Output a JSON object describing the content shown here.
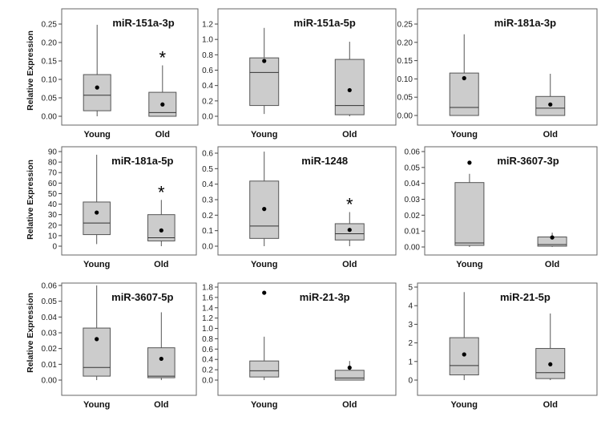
{
  "ylabel": "Relative Expression",
  "chart_data": [
    {
      "type": "box",
      "title": "miR-151a-3p",
      "categories": [
        "Young",
        "Old"
      ],
      "yticks": [
        "0.00",
        "0.05",
        "0.10",
        "0.15",
        "0.20",
        "0.25"
      ],
      "ylim": [
        0,
        0.25
      ],
      "ylabel": "Relative Expression",
      "boxes": [
        {
          "label": "Young",
          "min": 0.0,
          "q1": 0.015,
          "median": 0.057,
          "q3": 0.113,
          "max": 0.248,
          "mean": 0.078,
          "sig": ""
        },
        {
          "label": "Old",
          "min": 0.0,
          "q1": 0.0,
          "median": 0.01,
          "q3": 0.065,
          "max": 0.138,
          "mean": 0.032,
          "sig": "*"
        }
      ]
    },
    {
      "type": "box",
      "title": "miR-151a-5p",
      "categories": [
        "Young",
        "Old"
      ],
      "yticks": [
        "0.0",
        "0.2",
        "0.4",
        "0.6",
        "0.8",
        "1.0",
        "1.2"
      ],
      "ylim": [
        0,
        1.2
      ],
      "ylabel": "",
      "boxes": [
        {
          "label": "Young",
          "min": 0.03,
          "q1": 0.14,
          "median": 0.57,
          "q3": 0.76,
          "max": 1.15,
          "mean": 0.72,
          "sig": ""
        },
        {
          "label": "Old",
          "min": 0.0,
          "q1": 0.02,
          "median": 0.14,
          "q3": 0.74,
          "max": 0.97,
          "mean": 0.34,
          "sig": ""
        }
      ]
    },
    {
      "type": "box",
      "title": "miR-181a-3p",
      "categories": [
        "Young",
        "Old"
      ],
      "yticks": [
        "0.00",
        "0.05",
        "0.10",
        "0.15",
        "0.20",
        "0.25"
      ],
      "ylim": [
        0,
        0.25
      ],
      "ylabel": "",
      "boxes": [
        {
          "label": "Young",
          "min": 0.0,
          "q1": 0.0,
          "median": 0.022,
          "q3": 0.116,
          "max": 0.222,
          "mean": 0.102,
          "sig": ""
        },
        {
          "label": "Old",
          "min": 0.0,
          "q1": 0.0,
          "median": 0.02,
          "q3": 0.052,
          "max": 0.114,
          "mean": 0.03,
          "sig": ""
        }
      ]
    },
    {
      "type": "box",
      "title": "miR-181a-5p",
      "categories": [
        "Young",
        "Old"
      ],
      "yticks": [
        "0",
        "10",
        "20",
        "30",
        "40",
        "50",
        "60",
        "70",
        "80",
        "90"
      ],
      "ylim": [
        0,
        90
      ],
      "ylabel": "Relative Expression",
      "boxes": [
        {
          "label": "Young",
          "min": 2,
          "q1": 11,
          "median": 22,
          "q3": 42,
          "max": 87,
          "mean": 32,
          "sig": ""
        },
        {
          "label": "Old",
          "min": 0,
          "q1": 5,
          "median": 8,
          "q3": 30,
          "max": 44,
          "mean": 15,
          "sig": "*"
        }
      ]
    },
    {
      "type": "box",
      "title": "miR-1248",
      "categories": [
        "Young",
        "Old"
      ],
      "yticks": [
        "0.0",
        "0.1",
        "0.2",
        "0.3",
        "0.4",
        "0.5",
        "0.6"
      ],
      "ylim": [
        0,
        0.6
      ],
      "ylabel": "",
      "boxes": [
        {
          "label": "Young",
          "min": 0.0,
          "q1": 0.05,
          "median": 0.13,
          "q3": 0.42,
          "max": 0.61,
          "mean": 0.24,
          "sig": ""
        },
        {
          "label": "Old",
          "min": 0.0,
          "q1": 0.04,
          "median": 0.08,
          "q3": 0.145,
          "max": 0.22,
          "mean": 0.105,
          "sig": "*"
        }
      ]
    },
    {
      "type": "box",
      "title": "miR-3607-3p",
      "categories": [
        "Young",
        "Old"
      ],
      "yticks": [
        "0.00",
        "0.01",
        "0.02",
        "0.03",
        "0.04",
        "0.05",
        "0.06"
      ],
      "ylim": [
        0,
        0.06
      ],
      "ylabel": "",
      "boxes": [
        {
          "label": "Young",
          "min": 0.0,
          "q1": 0.001,
          "median": 0.0025,
          "q3": 0.0405,
          "max": 0.046,
          "mean": 0.053,
          "sig": ""
        },
        {
          "label": "Old",
          "min": 0.0,
          "q1": 0.0005,
          "median": 0.0015,
          "q3": 0.0063,
          "max": 0.009,
          "mean": 0.006,
          "sig": ""
        }
      ]
    },
    {
      "type": "box",
      "title": "miR-3607-5p",
      "categories": [
        "Young",
        "Old"
      ],
      "yticks": [
        "0.00",
        "0.01",
        "0.02",
        "0.03",
        "0.04",
        "0.05",
        "0.06"
      ],
      "ylim": [
        0,
        0.06
      ],
      "ylabel": "Relative Expression",
      "boxes": [
        {
          "label": "Young",
          "min": 0.0,
          "q1": 0.0025,
          "median": 0.008,
          "q3": 0.033,
          "max": 0.06,
          "mean": 0.026,
          "sig": ""
        },
        {
          "label": "Old",
          "min": 0.0,
          "q1": 0.0015,
          "median": 0.0025,
          "q3": 0.0205,
          "max": 0.043,
          "mean": 0.0135,
          "sig": ""
        }
      ]
    },
    {
      "type": "box",
      "title": "miR-21-3p",
      "categories": [
        "Young",
        "Old"
      ],
      "yticks": [
        "0.0",
        "0.2",
        "0.4",
        "0.6",
        "0.8",
        "1.0",
        "1.2",
        "1.4",
        "1.6",
        "1.8"
      ],
      "ylim": [
        0,
        1.8
      ],
      "ylabel": "",
      "boxes": [
        {
          "label": "Young",
          "min": 0.0,
          "q1": 0.06,
          "median": 0.18,
          "q3": 0.37,
          "max": 0.84,
          "mean": 1.69,
          "sig": ""
        },
        {
          "label": "Old",
          "min": 0.0,
          "q1": 0.0,
          "median": 0.04,
          "q3": 0.19,
          "max": 0.37,
          "mean": 0.24,
          "sig": ""
        }
      ]
    },
    {
      "type": "box",
      "title": "miR-21-5p",
      "categories": [
        "Young",
        "Old"
      ],
      "yticks": [
        "0",
        "1",
        "2",
        "3",
        "4",
        "5"
      ],
      "ylim": [
        0,
        5
      ],
      "ylabel": "",
      "boxes": [
        {
          "label": "Young",
          "min": 0.0,
          "q1": 0.28,
          "median": 0.78,
          "q3": 2.28,
          "max": 4.73,
          "mean": 1.38,
          "sig": ""
        },
        {
          "label": "Old",
          "min": 0.0,
          "q1": 0.08,
          "median": 0.4,
          "q3": 1.7,
          "max": 3.58,
          "mean": 0.85,
          "sig": ""
        }
      ]
    }
  ]
}
